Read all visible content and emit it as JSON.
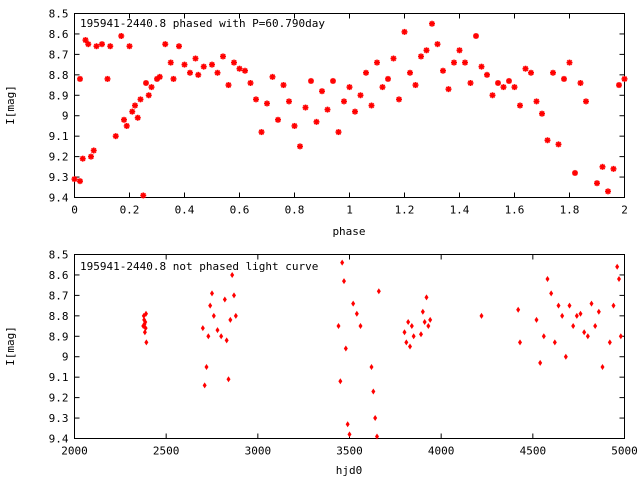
{
  "chart_data": [
    {
      "type": "scatter",
      "title": "195941-2440.8 phased with P=60.790day",
      "xlabel": "phase",
      "ylabel": "I[mag]",
      "xlim": [
        0,
        2
      ],
      "ylim": [
        8.5,
        9.4
      ],
      "y_inverted": true,
      "x_ticks": [
        "0",
        "0.2",
        "0.4",
        "0.6",
        "0.8",
        "1",
        "1.2",
        "1.4",
        "1.6",
        "1.8",
        "2"
      ],
      "y_ticks": [
        "8.5",
        "8.6",
        "8.7",
        "8.8",
        "8.9",
        "9",
        "9.1",
        "9.2",
        "9.3",
        "9.4"
      ],
      "grid": false,
      "marker": "star",
      "color": "#ff0000",
      "series": [
        {
          "x": [
            0.0,
            0.02,
            0.02,
            0.03,
            0.04,
            0.05,
            0.06,
            0.07,
            0.08,
            0.1,
            0.12,
            0.13,
            0.15,
            0.17,
            0.18,
            0.19,
            0.2,
            0.21,
            0.22,
            0.23,
            0.24,
            0.25,
            0.26,
            0.27,
            0.28,
            0.3,
            0.31,
            0.33,
            0.35,
            0.36,
            0.38,
            0.4,
            0.42,
            0.44,
            0.45,
            0.47,
            0.5,
            0.52,
            0.54,
            0.56,
            0.58,
            0.6,
            0.62,
            0.64,
            0.66,
            0.68,
            0.7,
            0.72,
            0.74,
            0.76,
            0.78,
            0.8,
            0.82,
            0.84,
            0.86,
            0.88,
            0.9,
            0.92,
            0.94,
            0.96,
            0.98,
            1.0,
            1.02,
            1.04,
            1.06,
            1.08,
            1.1,
            1.12,
            1.14,
            1.16,
            1.18,
            1.2,
            1.22,
            1.24,
            1.26,
            1.28,
            1.3,
            1.32,
            1.34,
            1.36,
            1.38,
            1.4,
            1.42,
            1.44,
            1.46,
            1.48,
            1.5,
            1.52,
            1.54,
            1.56,
            1.58,
            1.6,
            1.62,
            1.64,
            1.66,
            1.68,
            1.7,
            1.72,
            1.74,
            1.76,
            1.78,
            1.8,
            1.82,
            1.84,
            1.86,
            1.9,
            1.92,
            1.94,
            1.96,
            1.98,
            2.0
          ],
          "y": [
            9.31,
            8.82,
            9.32,
            9.21,
            8.63,
            8.65,
            9.2,
            9.17,
            8.66,
            8.65,
            8.82,
            8.66,
            9.1,
            8.61,
            9.02,
            9.05,
            8.66,
            8.98,
            8.95,
            9.01,
            8.92,
            9.39,
            8.84,
            8.9,
            8.86,
            8.82,
            8.81,
            8.65,
            8.74,
            8.82,
            8.66,
            8.75,
            8.79,
            8.72,
            8.8,
            8.76,
            8.75,
            8.79,
            8.71,
            8.85,
            8.74,
            8.77,
            8.78,
            8.84,
            8.92,
            9.08,
            8.94,
            8.81,
            9.02,
            8.85,
            8.93,
            9.05,
            9.15,
            8.96,
            8.83,
            9.03,
            8.88,
            8.97,
            8.83,
            9.08,
            8.93,
            8.86,
            8.98,
            8.9,
            8.79,
            8.95,
            8.74,
            8.86,
            8.82,
            8.72,
            8.92,
            8.59,
            8.79,
            8.85,
            8.71,
            8.68,
            8.55,
            8.65,
            8.78,
            8.87,
            8.74,
            8.68,
            8.74,
            8.84,
            8.61,
            8.76,
            8.8,
            8.9,
            8.84,
            8.86,
            8.83,
            8.86,
            8.95,
            8.77,
            8.79,
            8.93,
            8.99,
            9.12,
            8.79,
            9.14,
            8.82,
            8.74,
            9.28,
            8.84,
            8.93,
            9.33,
            9.25,
            9.37,
            9.26,
            8.85,
            8.82
          ]
        }
      ]
    },
    {
      "type": "scatter",
      "title": "195941-2440.8 not phased light curve",
      "xlabel": "hjd0",
      "ylabel": "I[mag]",
      "xlim": [
        2000,
        5000
      ],
      "ylim": [
        8.5,
        9.4
      ],
      "y_inverted": true,
      "x_ticks": [
        "2000",
        "2500",
        "3000",
        "3500",
        "4000",
        "4500",
        "5000"
      ],
      "y_ticks": [
        "8.5",
        "8.6",
        "8.7",
        "8.8",
        "8.9",
        "9",
        "9.1",
        "9.2",
        "9.3",
        "9.4"
      ],
      "grid": false,
      "marker": "diamond",
      "color": "#ff0000",
      "series": [
        {
          "x": [
            2375,
            2378,
            2380,
            2382,
            2384,
            2386,
            2388,
            2390,
            2392,
            2700,
            2710,
            2720,
            2730,
            2740,
            2750,
            2760,
            2780,
            2800,
            2820,
            2830,
            2840,
            2850,
            2860,
            2870,
            2880,
            3440,
            3450,
            3460,
            3470,
            3480,
            3490,
            3500,
            3520,
            3540,
            3560,
            3620,
            3630,
            3640,
            3650,
            3660,
            3800,
            3810,
            3820,
            3830,
            3840,
            3850,
            3890,
            3900,
            3910,
            3920,
            3930,
            3940,
            4220,
            4420,
            4430,
            4520,
            4540,
            4560,
            4580,
            4600,
            4620,
            4640,
            4660,
            4680,
            4700,
            4720,
            4740,
            4760,
            4780,
            4800,
            4820,
            4840,
            4860,
            4880,
            4920,
            4940,
            4960,
            4970,
            4980
          ],
          "y": [
            8.85,
            8.8,
            8.82,
            8.84,
            8.88,
            8.83,
            8.86,
            8.79,
            8.93,
            8.86,
            9.14,
            9.05,
            8.9,
            8.75,
            8.69,
            8.8,
            8.87,
            8.9,
            8.72,
            8.92,
            9.11,
            8.82,
            8.6,
            8.7,
            8.8,
            8.85,
            9.12,
            8.54,
            8.63,
            8.96,
            9.33,
            9.38,
            8.74,
            8.79,
            8.85,
            9.05,
            9.17,
            9.3,
            9.39,
            8.68,
            8.88,
            8.93,
            8.83,
            8.95,
            8.85,
            8.9,
            8.89,
            8.78,
            8.83,
            8.71,
            8.85,
            8.82,
            8.8,
            8.77,
            8.93,
            8.82,
            9.03,
            8.9,
            8.62,
            8.69,
            8.93,
            8.75,
            8.8,
            9.0,
            8.75,
            8.85,
            8.8,
            8.79,
            8.88,
            8.9,
            8.74,
            8.85,
            8.78,
            9.05,
            8.93,
            8.75,
            8.56,
            8.62,
            8.9
          ]
        }
      ]
    }
  ]
}
